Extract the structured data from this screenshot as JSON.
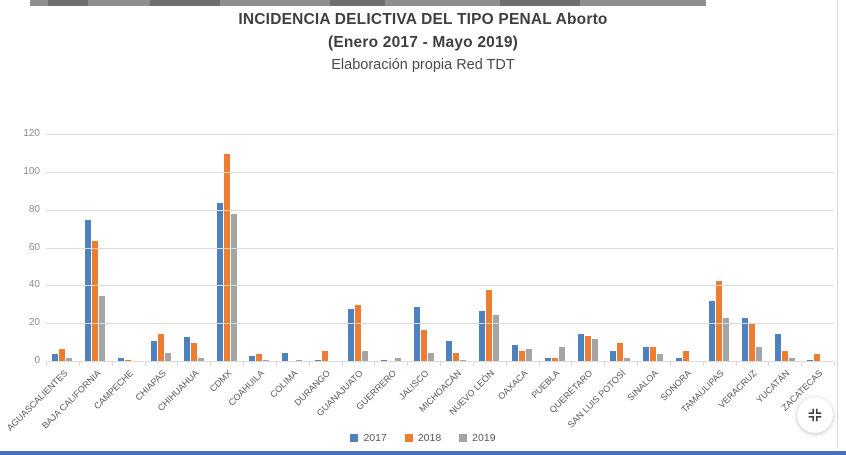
{
  "title": {
    "line1": "INCIDENCIA DELICTIVA DEL TIPO PENAL Aborto",
    "line2": "(Enero 2017 - Mayo 2019)",
    "line3": "Elaboración propia Red TDT"
  },
  "chart_data": {
    "type": "bar",
    "title": "INCIDENCIA DELICTIVA DEL TIPO PENAL Aborto (Enero 2017 - Mayo 2019) — Elaboración propia Red TDT",
    "categories": [
      "AGUASCALIENTES",
      "BAJA CALIFORNIA",
      "CAMPECHE",
      "CHIAPAS",
      "CHIHUAHUA",
      "CDMX",
      "COAHUILA",
      "COLIMA",
      "DURANGO",
      "GUANAJUATO",
      "GUERRERO",
      "JALISCO",
      "MICHOACÁN",
      "NUEVO LEÓN",
      "OAXACA",
      "PUEBLA",
      "QUERÉTARO",
      "SAN LUIS POTOSÍ",
      "SINALOA",
      "SONORA",
      "TAMAULIPAS",
      "VERACRUZ",
      "YUCATÁN",
      "ZACATECAS"
    ],
    "series": [
      {
        "name": "2017",
        "color": "#4e81bd",
        "values": [
          4,
          75,
          2,
          11,
          13,
          84,
          3,
          5,
          1,
          28,
          1,
          29,
          11,
          27,
          9,
          2,
          15,
          6,
          8,
          2,
          32,
          23,
          15,
          1
        ]
      },
      {
        "name": "2018",
        "color": "#ed7d31",
        "values": [
          7,
          64,
          1,
          15,
          10,
          110,
          4,
          0,
          6,
          30,
          0,
          17,
          5,
          38,
          6,
          2,
          14,
          10,
          8,
          6,
          43,
          20,
          6,
          4
        ]
      },
      {
        "name": "2019",
        "color": "#a5a5a5",
        "values": [
          2,
          35,
          0,
          5,
          2,
          78,
          1,
          1,
          0,
          6,
          2,
          5,
          1,
          25,
          7,
          8,
          12,
          2,
          4,
          0,
          23,
          8,
          2,
          0
        ]
      }
    ],
    "xlabel": "",
    "ylabel": "",
    "ylim": [
      0,
      120
    ],
    "yticks": [
      0,
      20,
      40,
      60,
      80,
      100,
      120
    ],
    "grid": true,
    "legend_position": "bottom"
  },
  "controls": {
    "fullscreen_button": "exit-fullscreen"
  },
  "colors": {
    "gridline": "#dcdcdc",
    "axis_text": "#595959",
    "tick_text": "#8c8c8c",
    "title_text": "#3f3f3f",
    "top_strip": "#8f8f8f",
    "bottom_strip": "#4472c4"
  }
}
